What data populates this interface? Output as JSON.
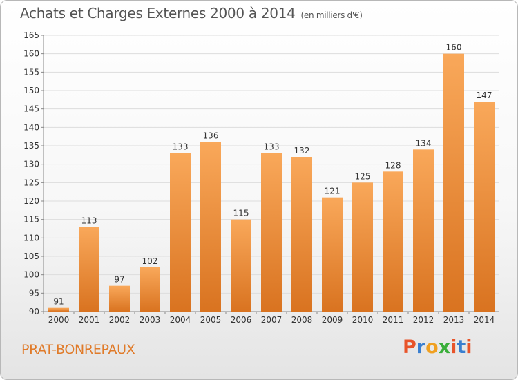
{
  "header": {
    "title": "Achats et Charges Externes 2000 à 2014",
    "subtitle": "(en milliers d'€)"
  },
  "footer": {
    "commune": "PRAT-BONREPAUX",
    "brand": "Proxiti",
    "brand_colors": [
      "#e8542a",
      "#3a7fd0",
      "#f0a020",
      "#3aae3a",
      "#e8542a",
      "#3a7fd0",
      "#e8542a"
    ]
  },
  "colors": {
    "bar_light": "#f9a85a",
    "bar_dark": "#d97320",
    "grid": "#dddddd"
  },
  "chart_data": {
    "type": "bar",
    "title": "Achats et Charges Externes 2000 à 2014",
    "subtitle": "(en milliers d'€)",
    "xlabel": "",
    "ylabel": "",
    "categories": [
      "2000",
      "2001",
      "2002",
      "2003",
      "2004",
      "2005",
      "2006",
      "2007",
      "2008",
      "2009",
      "2010",
      "2011",
      "2012",
      "2013",
      "2014"
    ],
    "values": [
      91,
      113,
      97,
      102,
      133,
      136,
      115,
      133,
      132,
      121,
      125,
      128,
      134,
      160,
      147
    ],
    "ylim": [
      90,
      165
    ],
    "yticks": [
      90,
      95,
      100,
      105,
      110,
      115,
      120,
      125,
      130,
      135,
      140,
      145,
      150,
      155,
      160,
      165
    ],
    "grid": true,
    "data_labels": true
  }
}
